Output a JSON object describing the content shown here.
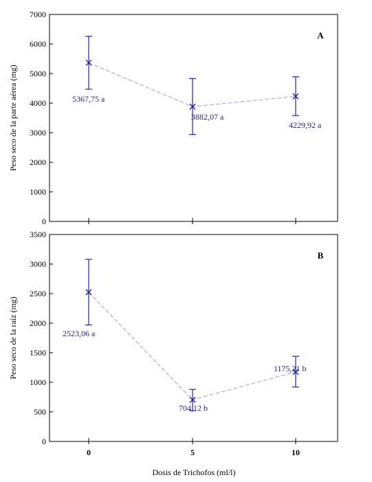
{
  "colors": {
    "marker": "#1f1fb4",
    "line": "#a9aef0",
    "axis": "#000000",
    "label": "#1f1f8f"
  },
  "chart_data": {
    "type": "line",
    "xlabel": "Dosis de Trichofos (ml/l)",
    "x_categories": [
      "0",
      "5",
      "10"
    ],
    "panels": [
      {
        "panel_label": "A",
        "ylabel": "Peso seco de la parte aérea (mg)",
        "ylim": [
          0,
          7000
        ],
        "yticks": [
          "0",
          "1000",
          "2000",
          "3000",
          "4000",
          "5000",
          "6000",
          "7000"
        ],
        "tick_values": [
          0,
          1000,
          2000,
          3000,
          4000,
          5000,
          6000,
          7000
        ],
        "series": [
          {
            "values": [
              5367.75,
              3882.07,
              4229.92
            ],
            "error_low": [
              4470,
              2940,
              3580
            ],
            "error_high": [
              6260,
              4830,
              4890
            ],
            "point_labels": [
              "5367,75 a",
              "3882,07 a",
              "4229,92 a"
            ]
          }
        ]
      },
      {
        "panel_label": "B",
        "ylabel": "Peso seco de la raíz (mg)",
        "ylim": [
          0,
          3500
        ],
        "yticks": [
          "0",
          "500",
          "1000",
          "1500",
          "2000",
          "2500",
          "3000",
          "3500"
        ],
        "tick_values": [
          0,
          500,
          1000,
          1500,
          2000,
          2500,
          3000,
          3500
        ],
        "series": [
          {
            "values": [
              2523.06,
              704.12,
              1175.21
            ],
            "error_low": [
              1970,
              520,
              920
            ],
            "error_high": [
              3080,
              880,
              1440
            ],
            "point_labels": [
              "2523,06 a",
              "704,12 b",
              "1175,21 b"
            ]
          }
        ]
      }
    ]
  }
}
